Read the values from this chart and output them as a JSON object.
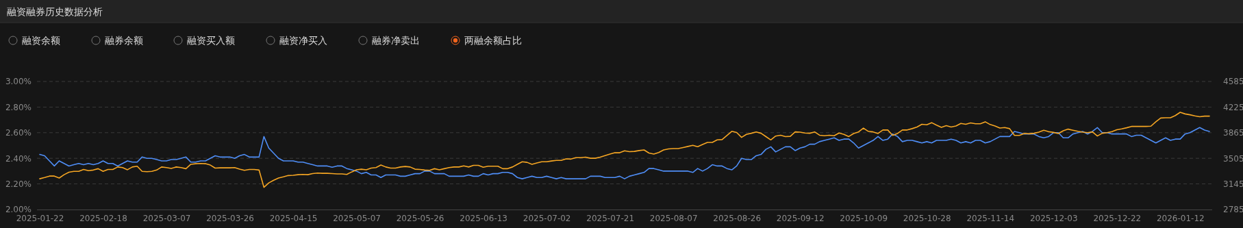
{
  "chart_data": {
    "type": "line",
    "title": "融资融券历史数据分析",
    "annotations": [
      "融资余额",
      "融券余额",
      "融资买入额",
      "融资净买入",
      "融券净卖出",
      "两融余额占比"
    ],
    "categories": [
      "2025-01-22",
      null,
      null,
      null,
      null,
      null,
      null,
      null,
      null,
      null,
      null,
      null,
      null,
      "2025-02-18",
      null,
      null,
      null,
      null,
      null,
      null,
      null,
      null,
      null,
      null,
      null,
      null,
      "2025-03-07",
      null,
      null,
      null,
      null,
      null,
      null,
      null,
      null,
      null,
      null,
      null,
      null,
      "2025-03-26",
      null,
      null,
      null,
      null,
      null,
      null,
      null,
      null,
      null,
      null,
      null,
      null,
      "2025-04-15",
      null,
      null,
      null,
      null,
      null,
      null,
      null,
      null,
      null,
      null,
      null,
      null,
      "2025-05-07",
      null,
      null,
      null,
      null,
      null,
      null,
      null,
      null,
      null,
      null,
      null,
      null,
      "2025-05-26",
      null,
      null,
      null,
      null,
      null,
      null,
      null,
      null,
      null,
      null,
      null,
      null,
      "2025-06-13",
      null,
      null,
      null,
      null,
      null,
      null,
      null,
      null,
      null,
      null,
      null,
      null,
      "2025-07-02",
      null,
      null,
      null,
      null,
      null,
      null,
      null,
      null,
      null,
      null,
      null,
      null,
      "2025-07-21",
      null,
      null,
      null,
      null,
      null,
      null,
      null,
      null,
      null,
      null,
      null,
      null,
      "2025-08-07",
      null,
      null,
      null,
      null,
      null,
      null,
      null,
      null,
      null,
      null,
      null,
      null,
      "2025-08-26",
      null,
      null,
      null,
      null,
      null,
      null,
      null,
      null,
      null,
      null,
      null,
      null,
      "2025-09-12",
      null,
      null,
      null,
      null,
      null,
      null,
      null,
      null,
      null,
      null,
      null,
      null,
      "2025-10-09",
      null,
      null,
      null,
      null,
      null,
      null,
      null,
      null,
      null,
      null,
      null,
      null,
      "2025-10-28",
      null,
      null,
      null,
      null,
      null,
      null,
      null,
      null,
      null,
      null,
      null,
      null,
      "2025-11-14",
      null,
      null,
      null,
      null,
      null,
      null,
      null,
      null,
      null,
      null,
      null,
      null,
      "2025-12-03",
      null,
      null,
      null,
      null,
      null,
      null,
      null,
      null,
      null,
      null,
      null,
      null,
      "2025-12-22",
      null,
      null,
      null,
      null,
      null,
      null,
      null,
      null,
      null,
      null,
      null,
      null,
      "2026-01-12",
      null,
      null,
      null,
      null,
      null,
      null
    ],
    "series": [
      {
        "color": "#4f8ef7",
        "values": [
          2.43,
          2.42,
          2.38,
          2.34,
          2.38,
          2.36,
          2.34,
          2.35,
          2.36,
          2.35,
          2.36,
          2.35,
          2.36,
          2.38,
          2.36,
          2.36,
          2.34,
          2.36,
          2.38,
          2.37,
          2.37,
          2.41,
          2.4,
          2.4,
          2.39,
          2.38,
          2.38,
          2.39,
          2.39,
          2.4,
          2.41,
          2.37,
          2.37,
          2.38,
          2.38,
          2.4,
          2.42,
          2.41,
          2.41,
          2.41,
          2.4,
          2.42,
          2.43,
          2.41,
          2.41,
          2.41,
          2.57,
          2.48,
          2.44,
          2.4,
          2.38,
          2.38,
          2.38,
          2.37,
          2.37,
          2.36,
          2.35,
          2.34,
          2.34,
          2.34,
          2.33,
          2.34,
          2.34,
          2.32,
          2.31,
          2.3,
          2.28,
          2.29,
          2.27,
          2.27,
          2.25,
          2.27,
          2.27,
          2.27,
          2.26,
          2.26,
          2.27,
          2.28,
          2.28,
          2.3,
          2.3,
          2.28,
          2.28,
          2.28,
          2.26,
          2.26,
          2.26,
          2.26,
          2.27,
          2.26,
          2.26,
          2.28,
          2.27,
          2.28,
          2.28,
          2.29,
          2.29,
          2.28,
          2.25,
          2.24,
          2.25,
          2.26,
          2.25,
          2.25,
          2.26,
          2.25,
          2.24,
          2.25,
          2.24,
          2.24,
          2.24,
          2.24,
          2.24,
          2.26,
          2.26,
          2.26,
          2.25,
          2.25,
          2.25,
          2.26,
          2.24,
          2.26,
          2.27,
          2.28,
          2.29,
          2.32,
          2.32,
          2.31,
          2.3,
          2.3,
          2.3,
          2.3,
          2.3,
          2.3,
          2.29,
          2.32,
          2.3,
          2.32,
          2.35,
          2.34,
          2.34,
          2.32,
          2.31,
          2.34,
          2.4,
          2.39,
          2.39,
          2.42,
          2.43,
          2.47,
          2.49,
          2.45,
          2.47,
          2.49,
          2.49,
          2.46,
          2.48,
          2.49,
          2.51,
          2.51,
          2.53,
          2.54,
          2.55,
          2.56,
          2.54,
          2.55,
          2.55,
          2.52,
          2.48,
          2.5,
          2.52,
          2.54,
          2.57,
          2.54,
          2.55,
          2.59,
          2.57,
          2.53,
          2.54,
          2.54,
          2.53,
          2.52,
          2.53,
          2.52,
          2.54,
          2.54,
          2.54,
          2.55,
          2.54,
          2.52,
          2.53,
          2.52,
          2.54,
          2.54,
          2.52,
          2.53,
          2.55,
          2.57,
          2.57,
          2.57,
          2.61,
          2.6,
          2.59,
          2.59,
          2.59,
          2.57,
          2.56,
          2.57,
          2.6,
          2.6,
          2.56,
          2.56,
          2.59,
          2.6,
          2.61,
          2.59,
          2.61,
          2.64,
          2.6,
          2.6,
          2.59,
          2.59,
          2.59,
          2.59,
          2.57,
          2.58,
          2.58,
          2.56,
          2.54,
          2.52,
          2.54,
          2.56,
          2.54,
          2.55,
          2.55,
          2.59,
          2.6,
          2.62,
          2.64,
          2.62,
          2.61
        ]
      },
      {
        "color": "#f6a623",
        "axis": "y2",
        "values": [
          3217,
          3235,
          3255,
          3255,
          3228,
          3275,
          3309,
          3321,
          3321,
          3348,
          3332,
          3340,
          3359,
          3321,
          3348,
          3348,
          3383,
          3375,
          3344,
          3383,
          3394,
          3321,
          3317,
          3321,
          3340,
          3383,
          3375,
          3363,
          3383,
          3375,
          3359,
          3421,
          3429,
          3433,
          3429,
          3410,
          3367,
          3371,
          3371,
          3371,
          3375,
          3352,
          3336,
          3348,
          3348,
          3340,
          3097,
          3159,
          3197,
          3228,
          3244,
          3263,
          3267,
          3275,
          3278,
          3275,
          3290,
          3298,
          3294,
          3294,
          3290,
          3286,
          3286,
          3278,
          3313,
          3344,
          3352,
          3344,
          3367,
          3375,
          3410,
          3383,
          3367,
          3367,
          3383,
          3390,
          3383,
          3352,
          3348,
          3340,
          3336,
          3359,
          3344,
          3359,
          3375,
          3383,
          3383,
          3398,
          3383,
          3406,
          3406,
          3379,
          3394,
          3394,
          3394,
          3359,
          3359,
          3383,
          3421,
          3456,
          3448,
          3421,
          3440,
          3456,
          3456,
          3467,
          3475,
          3475,
          3498,
          3494,
          3514,
          3514,
          3521,
          3506,
          3506,
          3521,
          3544,
          3564,
          3583,
          3583,
          3610,
          3598,
          3602,
          3614,
          3622,
          3579,
          3564,
          3587,
          3622,
          3637,
          3641,
          3641,
          3656,
          3672,
          3687,
          3668,
          3699,
          3729,
          3729,
          3764,
          3768,
          3826,
          3884,
          3868,
          3799,
          3841,
          3857,
          3876,
          3857,
          3810,
          3764,
          3818,
          3830,
          3810,
          3814,
          3876,
          3872,
          3861,
          3857,
          3876,
          3830,
          3822,
          3830,
          3822,
          3861,
          3842,
          3811,
          3853,
          3876,
          3930,
          3884,
          3876,
          3854,
          3903,
          3903,
          3827,
          3854,
          3903,
          3903,
          3922,
          3945,
          3983,
          3976,
          4006,
          3972,
          3941,
          3964,
          3945,
          3960,
          3995,
          3983,
          4003,
          3991,
          3991,
          4018,
          3980,
          3960,
          3930,
          3937,
          3922,
          3827,
          3827,
          3854,
          3850,
          3857,
          3873,
          3899,
          3880,
          3869,
          3854,
          3892,
          3915,
          3899,
          3884,
          3873,
          3865,
          3876,
          3819,
          3857,
          3865,
          3880,
          3907,
          3918,
          3934,
          3953,
          3953,
          3953,
          3953,
          3957,
          4018,
          4071,
          4075,
          4075,
          4106,
          4152,
          4129,
          4117,
          4102,
          4090,
          4098,
          4098
        ]
      }
    ],
    "ylim": [
      2.0,
      3.0
    ],
    "yticks": [
      {
        "value": 2.0,
        "label": "2.00%"
      },
      {
        "value": 2.2,
        "label": "2.20%"
      },
      {
        "value": 2.4,
        "label": "2.40%"
      },
      {
        "value": 2.6,
        "label": "2.60%"
      },
      {
        "value": 2.8,
        "label": "2.80%"
      },
      {
        "value": 3.0,
        "label": "3.00%"
      }
    ],
    "y2lim": [
      2785,
      4585
    ],
    "y2ticks": [
      2785,
      3145,
      3505,
      3865,
      4225,
      4585
    ],
    "grid": "y",
    "line_style": "solid"
  }
}
